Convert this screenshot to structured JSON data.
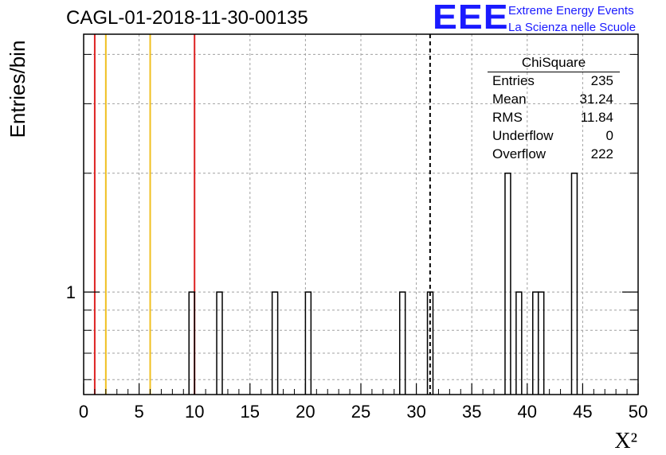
{
  "run_title": "CAGL-01-2018-11-30-00135",
  "logo": {
    "mark": "EEE",
    "line1": "Extreme Energy Events",
    "line2": "La Scienza nelle Scuole",
    "color": "#1a1aff"
  },
  "stats_box": {
    "title": "ChiSquare",
    "rows": [
      {
        "label": "Entries",
        "value": "235"
      },
      {
        "label": "Mean",
        "value": "31.24"
      },
      {
        "label": "RMS",
        "value": "11.84"
      },
      {
        "label": "Underflow",
        "value": "0"
      },
      {
        "label": "Overflow",
        "value": "222"
      }
    ]
  },
  "chart_data": {
    "type": "bar",
    "title": "CAGL-01-2018-11-30-00135",
    "xlabel": "X²",
    "ylabel": "Entries/bin",
    "xlim": [
      0,
      50
    ],
    "ylim": [
      0.55,
      4.5
    ],
    "y_scale": "log",
    "grid": true,
    "bin_width": 0.5,
    "x_ticks": [
      "0",
      "5",
      "10",
      "15",
      "20",
      "25",
      "30",
      "35",
      "40",
      "45",
      "50"
    ],
    "y_ticks": [
      "1"
    ],
    "bins": [
      {
        "x": 9.75,
        "value": 1
      },
      {
        "x": 12.25,
        "value": 1
      },
      {
        "x": 17.25,
        "value": 1
      },
      {
        "x": 20.25,
        "value": 1
      },
      {
        "x": 28.75,
        "value": 1
      },
      {
        "x": 31.25,
        "value": 1
      },
      {
        "x": 38.25,
        "value": 2
      },
      {
        "x": 39.25,
        "value": 1
      },
      {
        "x": 40.75,
        "value": 1
      },
      {
        "x": 41.25,
        "value": 1
      },
      {
        "x": 44.25,
        "value": 2
      }
    ],
    "reference_lines": [
      {
        "x": 1,
        "color": "#dd2222"
      },
      {
        "x": 2,
        "color": "#f0c020"
      },
      {
        "x": 6,
        "color": "#f0c020"
      },
      {
        "x": 10,
        "color": "#dd2222"
      }
    ],
    "mean_line": {
      "x": 31.24,
      "style": "dashed",
      "color": "#000000"
    }
  }
}
